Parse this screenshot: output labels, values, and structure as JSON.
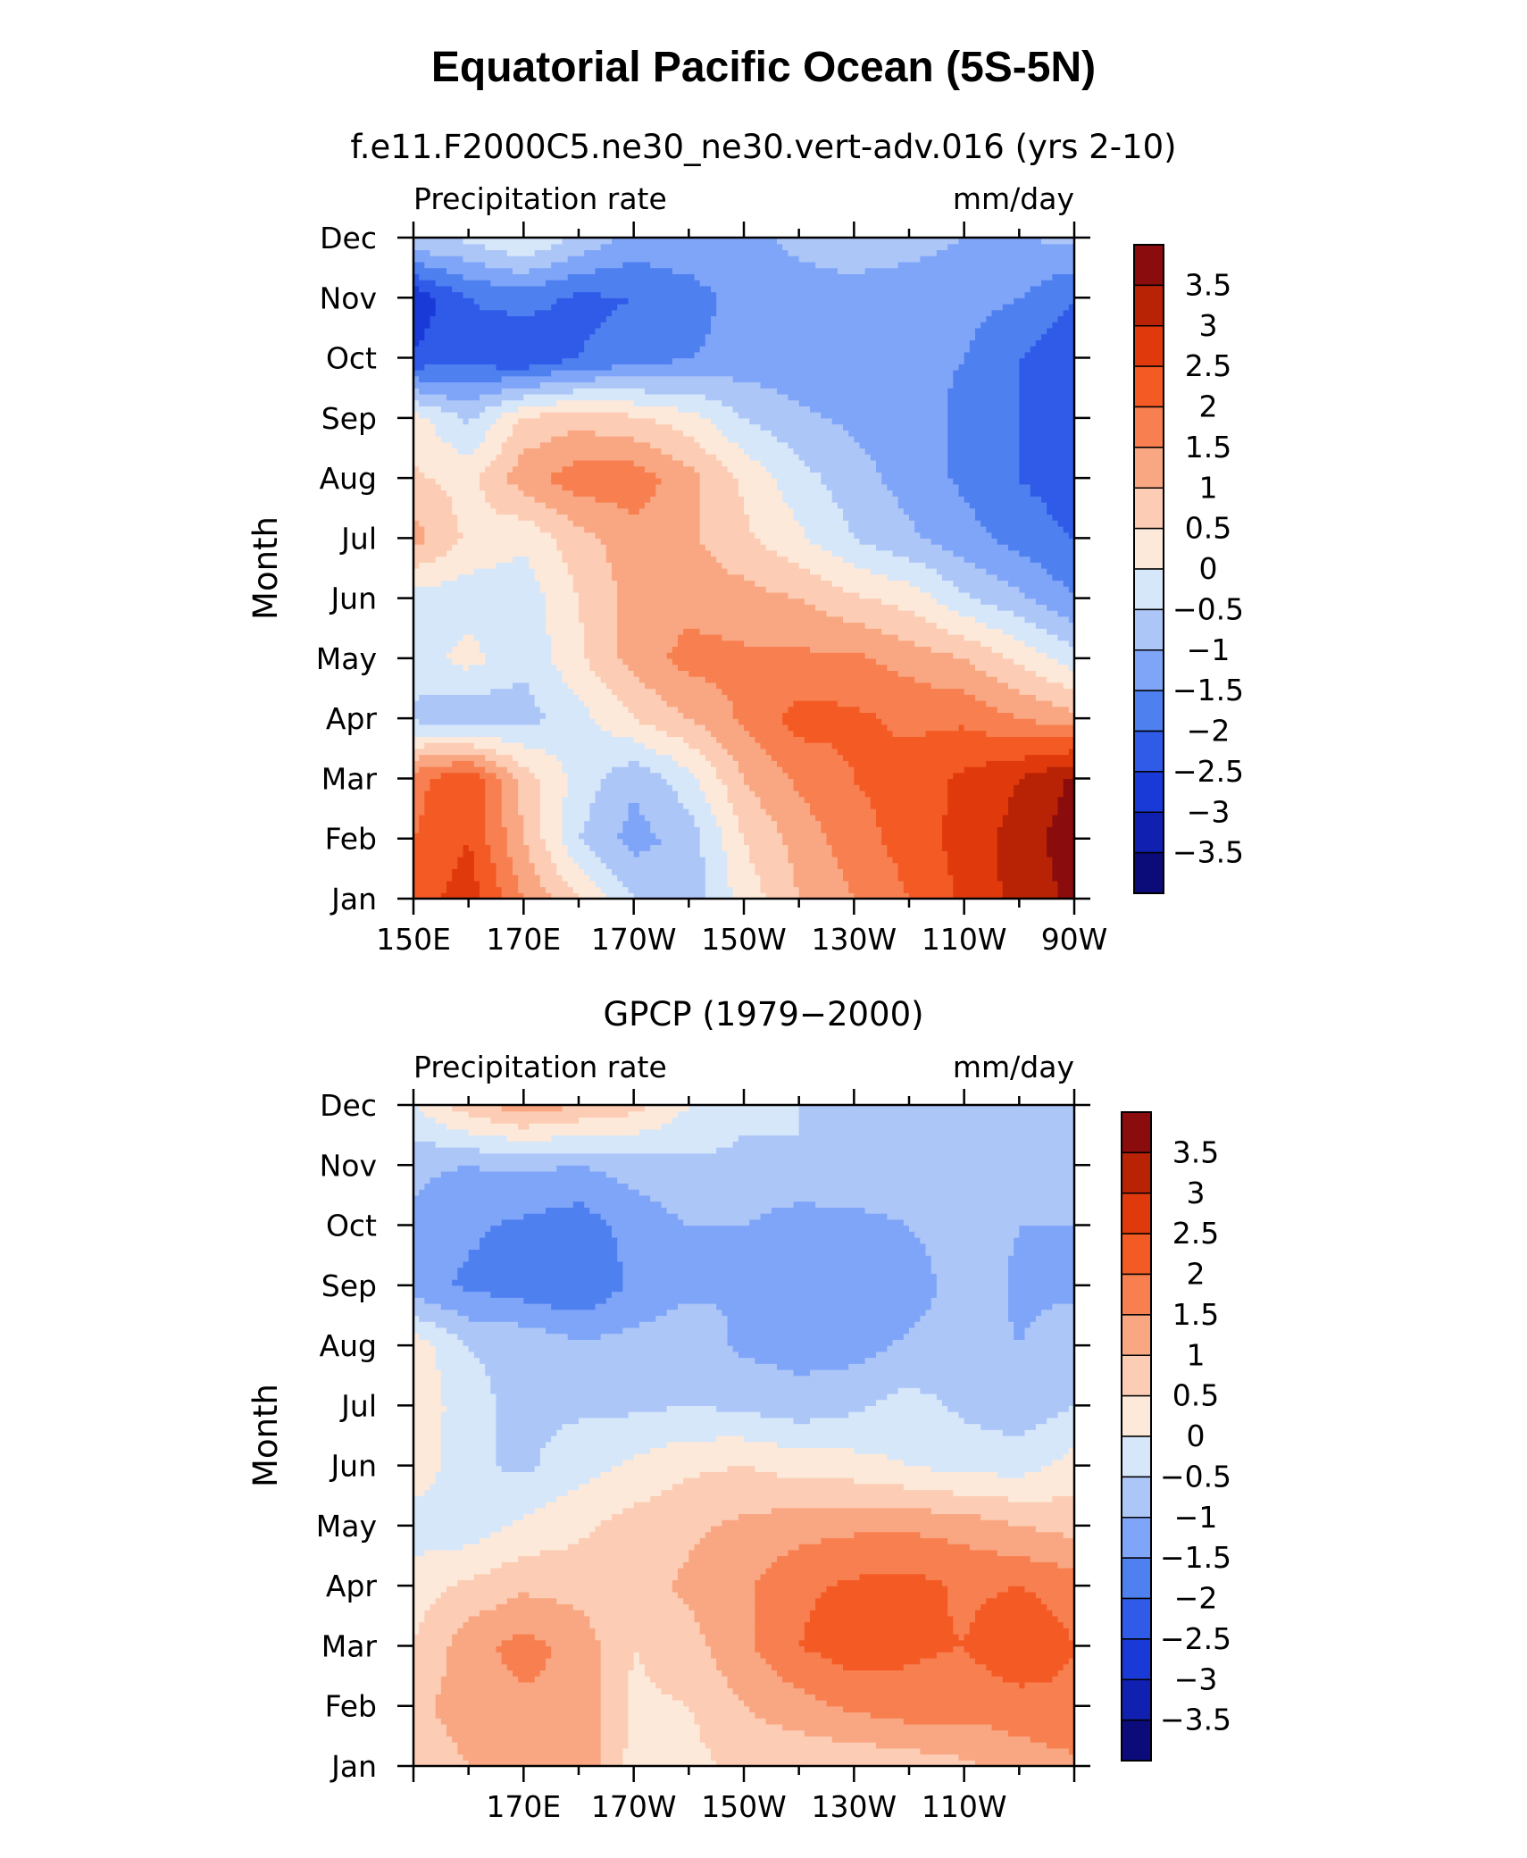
{
  "title": "Equatorial Pacific Ocean (5S-5N)",
  "colors": {
    "palette": [
      "#0b0b7a",
      "#1020b0",
      "#1a3ad8",
      "#2f5be8",
      "#4f80f0",
      "#7fa5f8",
      "#adc6f8",
      "#d6e7fa",
      "#fde9da",
      "#fcccb4",
      "#f9a782",
      "#f77f50",
      "#f45a24",
      "#e03a0c",
      "#b82306",
      "#8a0c0c"
    ],
    "axis": "#000000"
  },
  "chart_data": [
    {
      "type": "contour",
      "title": "f.e11.F2000C5.ne30_ne30.vert-adv.016 (yrs 2-10)",
      "left_string": "Precipitation rate",
      "right_string": "mm/day",
      "ylabel": "Month",
      "x_ticks": [
        "150E",
        "170E",
        "170W",
        "150W",
        "130W",
        "110W",
        "90W"
      ],
      "x_tick_lons": [
        150,
        170,
        190,
        210,
        230,
        250,
        270
      ],
      "y_ticks": [
        "Jan",
        "Feb",
        "Mar",
        "Apr",
        "May",
        "Jun",
        "Jul",
        "Aug",
        "Sep",
        "Oct",
        "Nov",
        "Dec"
      ],
      "xlim": [
        150,
        270
      ],
      "ylim": [
        0,
        11
      ],
      "colorbar_labels": [
        "3.5",
        "3",
        "2.5",
        "2",
        "1.5",
        "1",
        "0.5",
        "0",
        "−0.5",
        "−1",
        "−1.5",
        "−2",
        "−2.5",
        "−3",
        "−3.5"
      ],
      "levels": [
        -3.5,
        -3,
        -2.5,
        -2,
        -1.5,
        -1,
        -0.5,
        0,
        0.5,
        1,
        1.5,
        2,
        2.5,
        3,
        3.5
      ],
      "lons": [
        150,
        160,
        170,
        180,
        190,
        200,
        210,
        220,
        230,
        240,
        250,
        260,
        270
      ],
      "z": [
        [
          2.2,
          2.8,
          1.5,
          0.5,
          -0.5,
          -0.8,
          0.2,
          1.0,
          1.5,
          2.0,
          2.6,
          3.2,
          3.6
        ],
        [
          2.0,
          2.5,
          1.0,
          -0.5,
          -1.2,
          -0.8,
          0.5,
          1.2,
          1.8,
          2.2,
          2.7,
          3.2,
          3.8
        ],
        [
          1.8,
          2.5,
          0.8,
          -0.2,
          -0.9,
          -0.2,
          1.0,
          1.6,
          2.0,
          2.2,
          2.6,
          3.0,
          3.6
        ],
        [
          -0.6,
          -1.0,
          -0.7,
          -0.2,
          0.5,
          1.0,
          1.6,
          2.2,
          2.1,
          1.9,
          1.9,
          1.5,
          1.2
        ],
        [
          -0.3,
          0.2,
          -0.4,
          0.4,
          1.2,
          1.7,
          1.6,
          1.6,
          1.6,
          1.3,
          1.0,
          0.4,
          -0.3
        ],
        [
          -0.2,
          -0.3,
          -0.3,
          0.5,
          1.2,
          1.3,
          1.2,
          1.0,
          0.6,
          0.3,
          -0.4,
          -0.9,
          -1.5
        ],
        [
          1.2,
          0.4,
          0.1,
          0.8,
          1.3,
          1.1,
          0.6,
          0.1,
          -0.5,
          -0.9,
          -1.3,
          -1.7,
          -2.0
        ],
        [
          0.6,
          0.3,
          1.3,
          1.8,
          1.8,
          1.2,
          0.4,
          -0.3,
          -0.8,
          -1.2,
          -1.6,
          -2.0,
          -2.3
        ],
        [
          0.2,
          -0.6,
          0.6,
          0.8,
          0.6,
          0.2,
          -0.5,
          -0.9,
          -1.1,
          -1.3,
          -1.6,
          -2.0,
          -2.3
        ],
        [
          -2.4,
          -2.2,
          -2.5,
          -2.0,
          -1.8,
          -1.5,
          -1.3,
          -1.3,
          -1.4,
          -1.4,
          -1.5,
          -2.0,
          -2.4
        ],
        [
          -2.9,
          -2.0,
          -1.8,
          -2.1,
          -2.0,
          -1.8,
          -1.2,
          -1.2,
          -1.2,
          -1.3,
          -1.3,
          -1.5,
          -2.0
        ],
        [
          -0.5,
          -0.4,
          0.1,
          -0.6,
          -1.2,
          -1.0,
          -1.1,
          -0.9,
          -0.7,
          -0.8,
          -1.0,
          -1.0,
          -0.9
        ]
      ]
    },
    {
      "type": "contour",
      "title": "GPCP (1979−2000)",
      "left_string": "Precipitation rate",
      "right_string": "mm/day",
      "ylabel": "Month",
      "x_ticks": [
        "170E",
        "170W",
        "150W",
        "130W",
        "110W"
      ],
      "x_tick_lons": [
        170,
        190,
        210,
        230,
        250
      ],
      "y_ticks": [
        "Jan",
        "Feb",
        "Mar",
        "Apr",
        "May",
        "Jun",
        "Jul",
        "Aug",
        "Sep",
        "Oct",
        "Nov",
        "Dec"
      ],
      "xlim": [
        150,
        270
      ],
      "ylim": [
        0,
        11
      ],
      "colorbar_labels": [
        "3.5",
        "3",
        "2.5",
        "2",
        "1.5",
        "1",
        "0.5",
        "0",
        "−0.5",
        "−1",
        "−1.5",
        "−2",
        "−2.5",
        "−3",
        "−3.5"
      ],
      "levels": [
        -3.5,
        -3,
        -2.5,
        -2,
        -1.5,
        -1,
        -0.5,
        0,
        0.5,
        1,
        1.5,
        2,
        2.5,
        3,
        3.5
      ],
      "lons": [
        150,
        160,
        170,
        180,
        190,
        200,
        210,
        220,
        230,
        240,
        250,
        260,
        270
      ],
      "z": [
        [
          0.7,
          1.0,
          1.2,
          1.5,
          0.3,
          0.3,
          0.7,
          0.6,
          0.6,
          0.7,
          0.9,
          1.2,
          1.4
        ],
        [
          0.9,
          1.2,
          1.4,
          1.4,
          0.4,
          0.5,
          1.0,
          1.3,
          1.6,
          1.8,
          1.7,
          1.8,
          1.9
        ],
        [
          0.5,
          1.3,
          1.7,
          1.3,
          0.5,
          0.8,
          1.4,
          2.0,
          2.3,
          2.1,
          2.0,
          2.4,
          2.0
        ],
        [
          0.3,
          0.6,
          0.9,
          0.8,
          0.8,
          1.1,
          1.4,
          1.9,
          2.1,
          2.2,
          1.9,
          2.0,
          1.8
        ],
        [
          -0.3,
          -0.3,
          0.1,
          0.4,
          0.7,
          0.9,
          1.1,
          1.3,
          1.4,
          1.4,
          1.3,
          1.0,
          0.8
        ],
        [
          0.4,
          -0.4,
          -0.6,
          -0.2,
          0.1,
          0.4,
          0.5,
          0.3,
          0.2,
          0.0,
          -0.2,
          -0.2,
          0.2
        ],
        [
          0.5,
          -0.4,
          -0.6,
          -0.6,
          -0.6,
          -0.5,
          -0.6,
          -0.8,
          -0.6,
          -0.3,
          -0.6,
          -0.8,
          -0.5
        ],
        [
          0.3,
          -0.5,
          -0.6,
          -0.9,
          -0.8,
          -0.7,
          -1.1,
          -1.2,
          -1.2,
          -0.9,
          -0.8,
          -1.0,
          -0.7
        ],
        [
          -1.3,
          -1.6,
          -1.8,
          -2.0,
          -1.4,
          -1.1,
          -1.0,
          -1.3,
          -1.4,
          -1.3,
          -0.7,
          -1.1,
          -1.1
        ],
        [
          -1.1,
          -1.4,
          -1.6,
          -1.8,
          -1.3,
          -1.0,
          -1.0,
          -1.3,
          -1.2,
          -1.0,
          -0.7,
          -1.0,
          -1.0
        ],
        [
          -0.9,
          -1.0,
          -0.9,
          -1.0,
          -0.8,
          -0.6,
          -0.6,
          -0.5,
          -0.5,
          -0.6,
          -0.7,
          -0.7,
          -0.8
        ],
        [
          0.0,
          0.8,
          1.3,
          1.0,
          0.7,
          0.0,
          -0.4,
          -0.5,
          -0.5,
          -0.6,
          -0.6,
          -0.6,
          -0.6
        ]
      ]
    }
  ]
}
